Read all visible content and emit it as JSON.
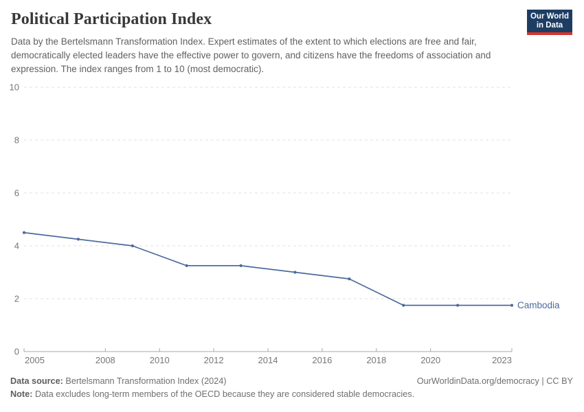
{
  "header": {
    "title": "Political Participation Index",
    "subtitle": "Data by the Bertelsmann Transformation Index. Expert estimates of the extent to which elections are free and fair, democratically elected leaders have the effective power to govern, and citizens have the freedoms of association and expression. The index ranges from 1 to 10 (most democratic).",
    "logo": {
      "line1": "Our World",
      "line2": "in Data",
      "bg_color": "#1d3d63",
      "stripe_color": "#d7332b"
    }
  },
  "chart_data": {
    "type": "line",
    "title": "Political Participation Index",
    "xlabel": "",
    "ylabel": "",
    "xlim": [
      2005,
      2023
    ],
    "ylim": [
      0,
      10
    ],
    "grid": "horizontal-dashed",
    "x_ticks": [
      2005,
      2008,
      2010,
      2012,
      2014,
      2016,
      2018,
      2020,
      2023
    ],
    "y_ticks": [
      0,
      2,
      4,
      6,
      8,
      10
    ],
    "series": [
      {
        "name": "Cambodia",
        "color": "#4C6A9C",
        "x": [
          2005,
          2007,
          2009,
          2011,
          2013,
          2015,
          2017,
          2019,
          2021,
          2023
        ],
        "values": [
          4.5,
          4.25,
          4.0,
          3.25,
          3.25,
          3.0,
          2.75,
          1.75,
          1.75,
          1.75
        ]
      }
    ],
    "end_label": "Cambodia",
    "axis_color": "#a7a7a7",
    "gridline_color": "#e0e0e0"
  },
  "footer": {
    "source_label": "Data source:",
    "source_text": "Bertelsmann Transformation Index (2024)",
    "link_text": "OurWorldinData.org/democracy | CC BY",
    "note_label": "Note:",
    "note_text": "Data excludes long-term members of the OECD because they are considered stable democracies."
  }
}
